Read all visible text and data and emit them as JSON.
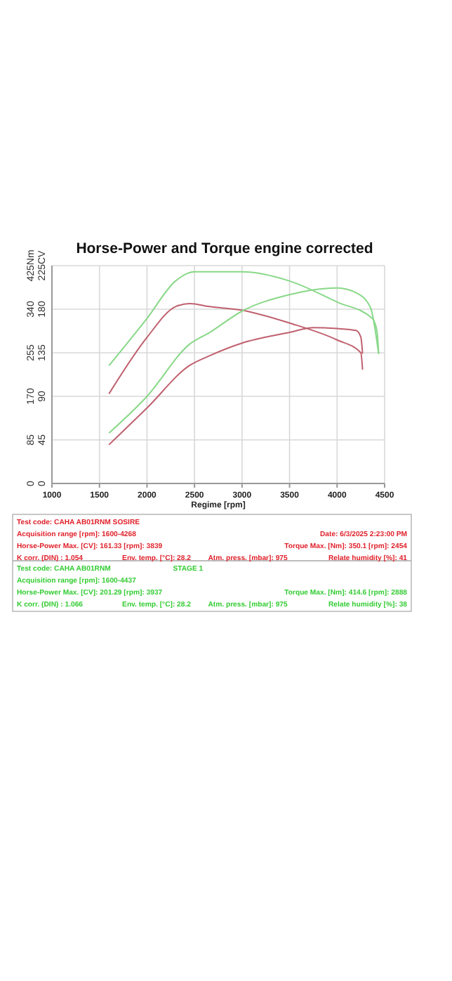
{
  "chart_data": {
    "type": "line",
    "title": "Horse-Power and Torque engine corrected",
    "xlabel": "Regime [rpm]",
    "xlim": [
      1000,
      4500
    ],
    "xticks": [
      1000,
      1500,
      2000,
      2500,
      3000,
      3500,
      4000,
      4500
    ],
    "ylim": [
      0,
      225
    ],
    "yticks": [
      0,
      45,
      90,
      135,
      180,
      {
        "value": 225,
        "label": "225CV"
      }
    ],
    "y2lim": [
      0,
      425
    ],
    "y2ticks": [
      0,
      85,
      170,
      255,
      340,
      {
        "value": 425,
        "label": "425Nm"
      }
    ],
    "grid": true,
    "marker": "none",
    "line_style": "solid",
    "series": [
      {
        "color": "#c0606e",
        "axis": "y2",
        "x": [
          1600,
          2000,
          2300,
          2450,
          2660,
          3000,
          3500,
          4000,
          4250,
          4268
        ],
        "values": [
          175,
          285,
          345,
          351,
          345,
          338,
          313,
          280,
          255,
          222
        ]
      },
      {
        "color": "#c0606e",
        "x": [
          1600,
          2000,
          2450,
          2660,
          3000,
          3500,
          3750,
          4000,
          4200,
          4250,
          4268
        ],
        "values": [
          40,
          78,
          122,
          132,
          145,
          156,
          161,
          160,
          158,
          151,
          134
        ]
      },
      {
        "color": "#88d888",
        "axis": "y2",
        "x": [
          1600,
          2000,
          2300,
          2500,
          3000,
          3500,
          4000,
          4370,
          4420,
          4437
        ],
        "values": [
          230,
          322,
          395,
          413,
          413,
          395,
          354,
          322,
          297,
          253
        ]
      },
      {
        "color": "#88d888",
        "x": [
          1600,
          2000,
          2450,
          2660,
          3000,
          3500,
          3750,
          4000,
          4200,
          4350,
          4437
        ],
        "values": [
          52,
          90,
          144,
          156,
          178,
          195,
          200,
          202,
          197,
          182,
          134
        ]
      }
    ],
    "annotations": [
      "Test code: CAHA AB01RNM SOSIRE",
      "Acquisition range [rpm]: 1600-4268",
      "Date: 6/3/2025   2:23:00 PM",
      "Horse-Power Max. [CV]: 161.33   [rpm]: 3839",
      "Torque Max. [Nm]: 350.1   [rpm]: 2454",
      "K corr. (DIN) : 1.054",
      "Env. temp. [°C]: 28.2",
      "Atm. press. [mbar]: 975",
      "Relate humidity [%]: 41",
      "Test code: CAHA AB01RNM",
      "STAGE 1",
      "Acquisition range [rpm]: 1600-4437",
      "Horse-Power Max. [CV]: 201.29   [rpm]: 3937",
      "Torque Max. [Nm]: 414.6   [rpm]: 2888",
      "K corr. (DIN) : 1.066",
      "Env. temp. [°C]: 28.2",
      "Atm. press. [mbar]: 975",
      "Relate humidity [%]: 38"
    ]
  }
}
